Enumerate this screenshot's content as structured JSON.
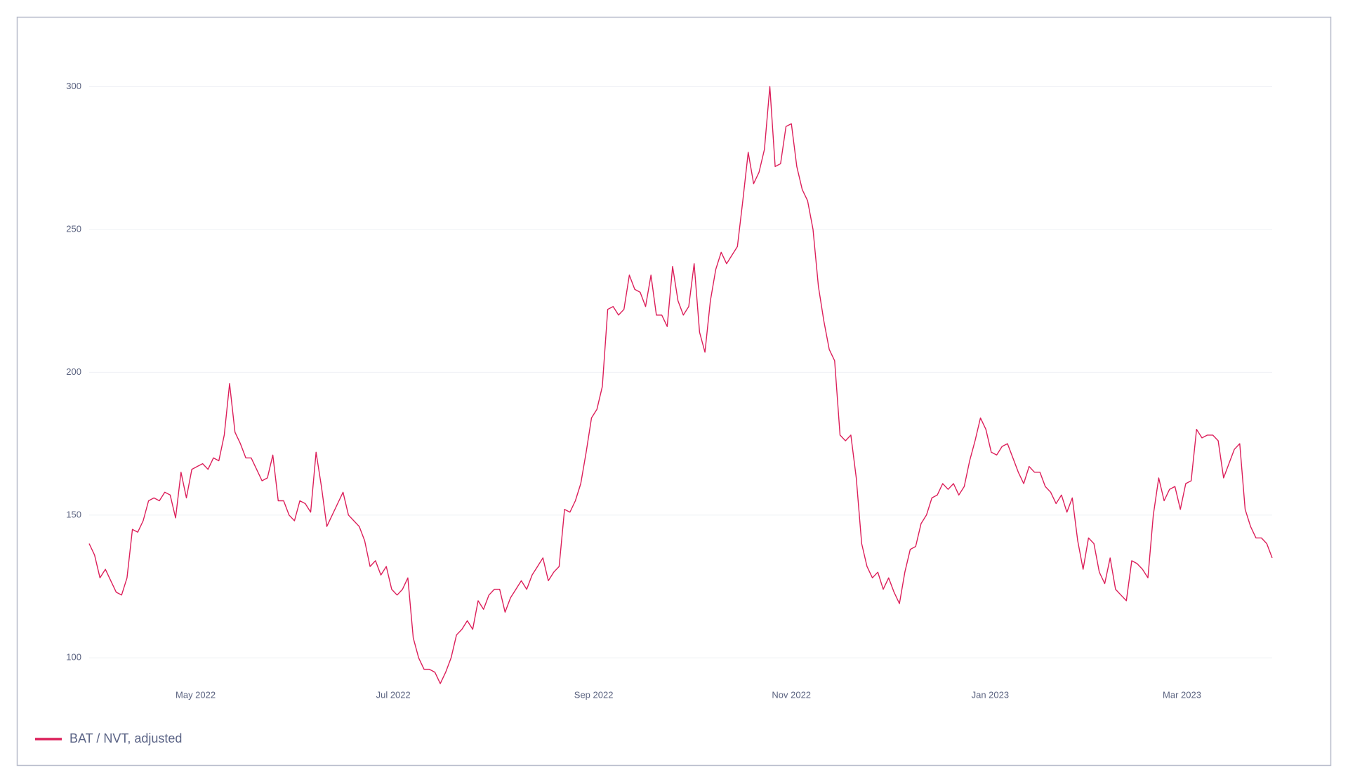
{
  "chart_data": {
    "type": "line",
    "series": [
      {
        "name": "BAT / NVT, adjusted",
        "color": "#dc1f5a",
        "values": [
          140,
          136,
          128,
          131,
          127,
          123,
          122,
          128,
          145,
          144,
          148,
          155,
          156,
          155,
          158,
          157,
          149,
          165,
          156,
          166,
          167,
          168,
          166,
          170,
          169,
          178,
          196,
          179,
          175,
          170,
          170,
          166,
          162,
          163,
          171,
          155,
          155,
          150,
          148,
          155,
          154,
          151,
          172,
          160,
          146,
          150,
          154,
          158,
          150,
          148,
          146,
          141,
          132,
          134,
          129,
          132,
          124,
          122,
          124,
          128,
          107,
          100,
          96,
          96,
          95,
          91,
          95,
          100,
          108,
          110,
          113,
          110,
          120,
          117,
          122,
          124,
          124,
          116,
          121,
          124,
          127,
          124,
          129,
          132,
          135,
          127,
          130,
          132,
          152,
          151,
          155,
          161,
          172,
          184,
          187,
          195,
          222,
          223,
          220,
          222,
          234,
          229,
          228,
          223,
          234,
          220,
          220,
          216,
          237,
          225,
          220,
          223,
          238,
          214,
          207,
          225,
          236,
          242,
          238,
          241,
          244,
          260,
          277,
          266,
          270,
          278,
          300,
          272,
          273,
          286,
          287,
          272,
          264,
          260,
          250,
          230,
          218,
          208,
          204,
          178,
          176,
          178,
          163,
          140,
          132,
          128,
          130,
          124,
          128,
          123,
          119,
          130,
          138,
          139,
          147,
          150,
          156,
          157,
          161,
          159,
          161,
          157,
          160,
          169,
          176,
          184,
          180,
          172,
          171,
          174,
          175,
          170,
          165,
          161,
          167,
          165,
          165,
          160,
          158,
          154,
          157,
          151,
          156,
          141,
          131,
          142,
          140,
          130,
          126,
          135,
          124,
          122,
          120,
          134,
          133,
          131,
          128,
          150,
          163,
          155,
          159,
          160,
          152,
          161,
          162,
          180,
          177,
          178,
          178,
          176,
          163,
          168,
          173,
          175,
          152,
          146,
          142,
          142,
          140,
          135
        ]
      }
    ],
    "xlim": [
      0,
      219
    ],
    "xticks": [
      {
        "value": 19.7,
        "label": "May 2022"
      },
      {
        "value": 56.3,
        "label": "Jul 2022"
      },
      {
        "value": 93.4,
        "label": "Sep 2022"
      },
      {
        "value": 130,
        "label": "Nov 2022"
      },
      {
        "value": 166.8,
        "label": "Jan 2023"
      },
      {
        "value": 202.3,
        "label": "Mar 2023"
      }
    ],
    "ylim": [
      90,
      305
    ],
    "yticks": [
      100,
      150,
      200,
      250,
      300
    ],
    "grid": true,
    "legend": "bottom-left"
  }
}
